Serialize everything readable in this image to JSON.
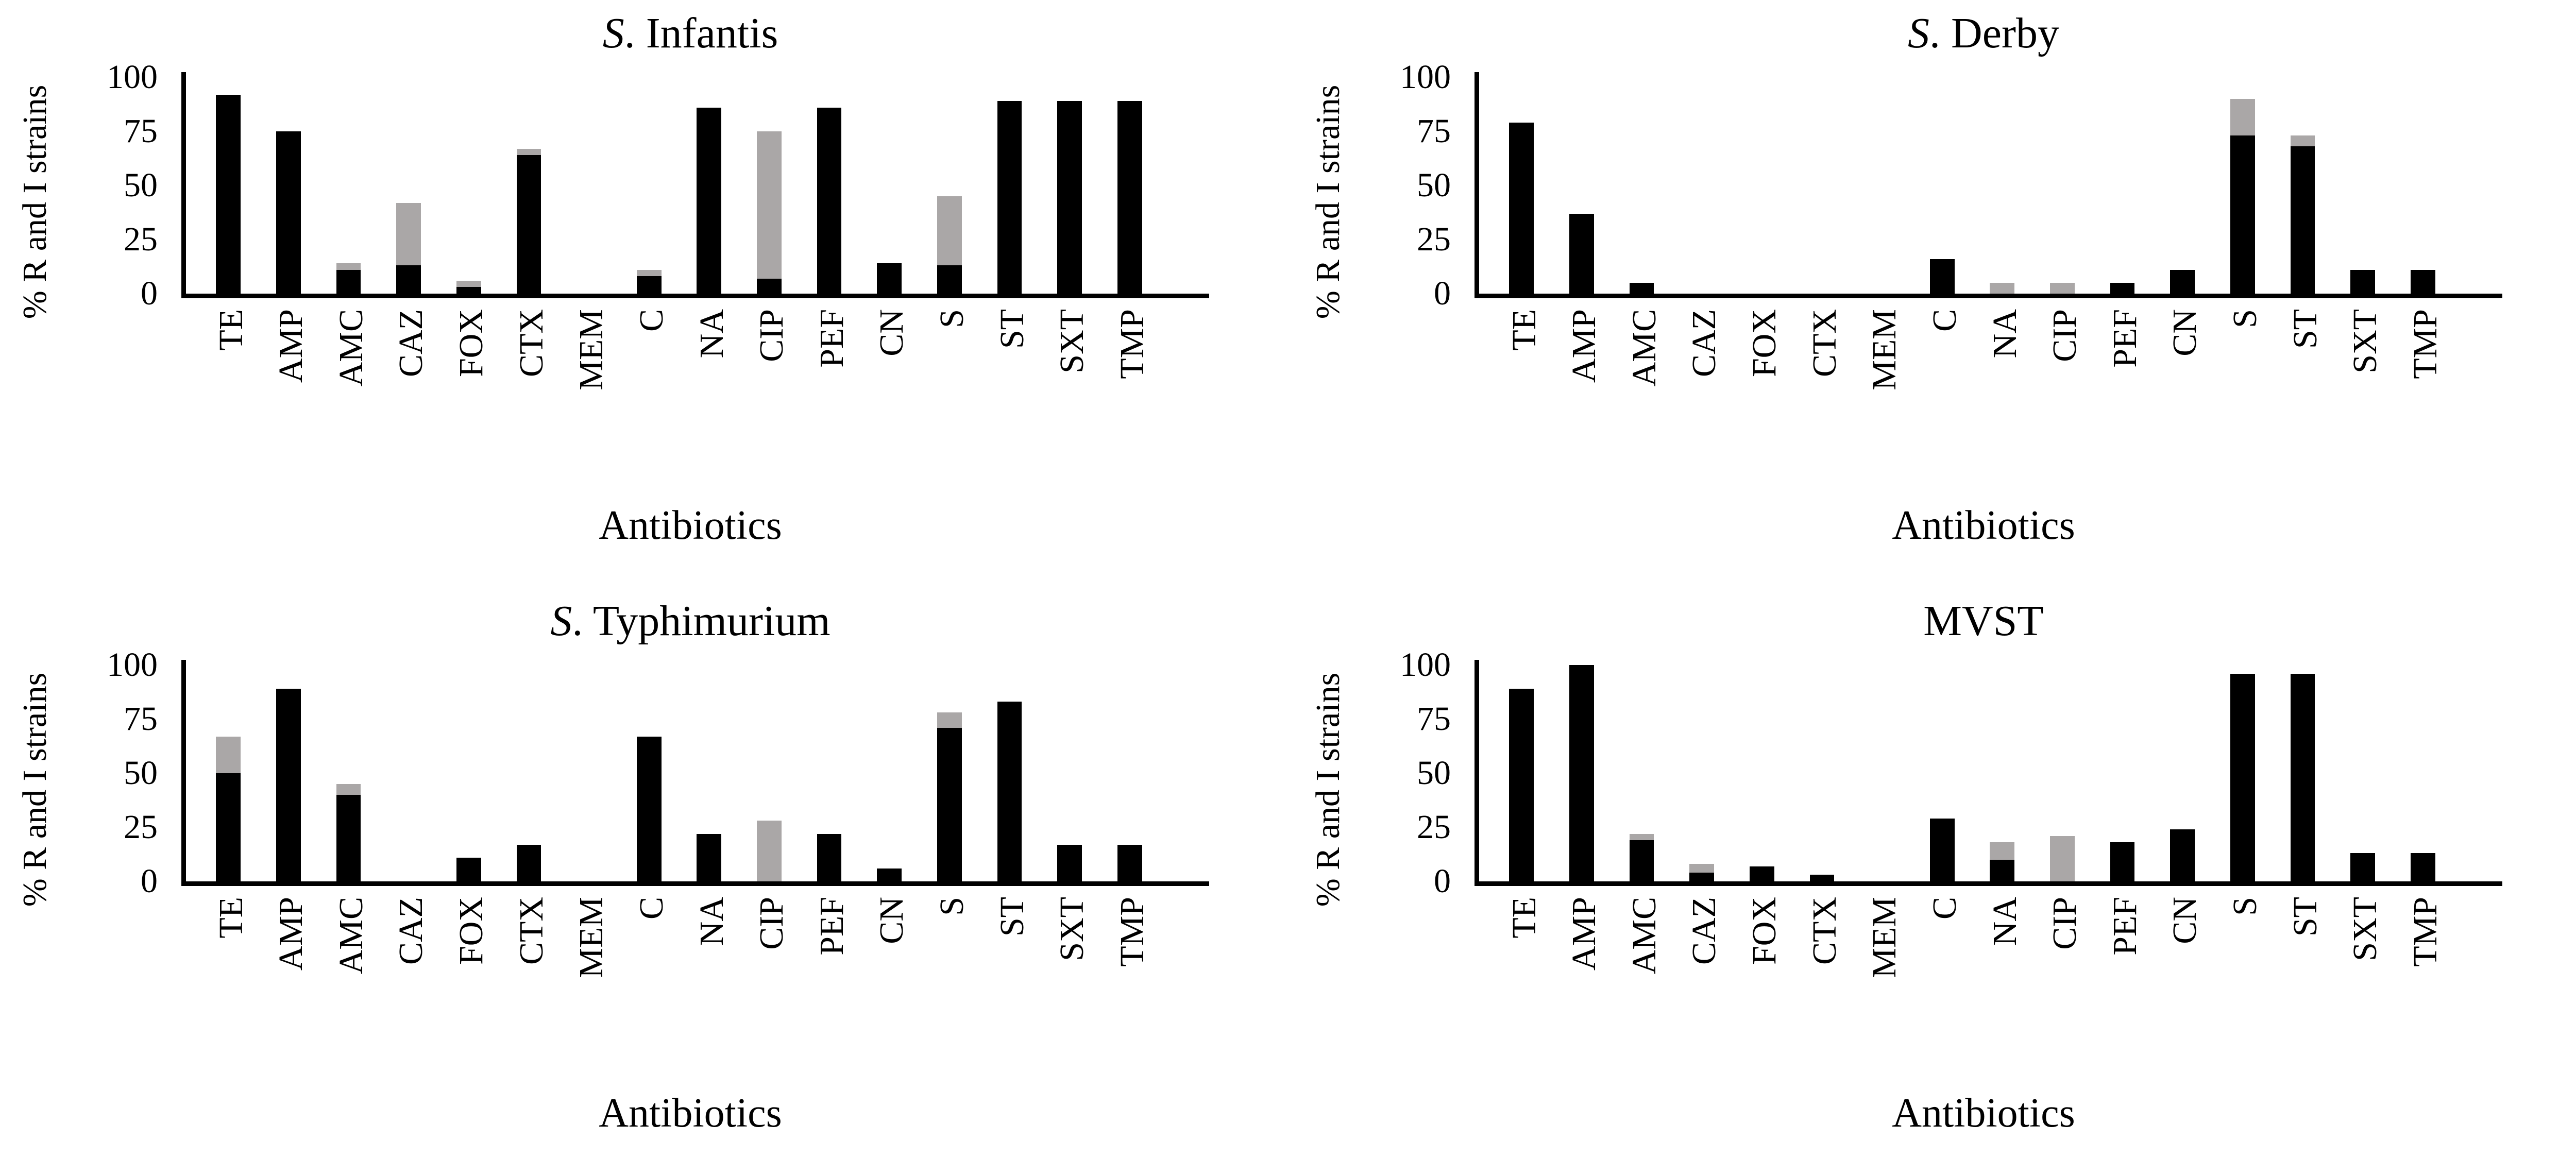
{
  "figure": {
    "background": "#ffffff",
    "bar_black": "#000000",
    "bar_gray": "#aaa7a7",
    "axis_color": "#000000"
  },
  "chart_data": [
    {
      "id": "s-infantis",
      "type": "bar",
      "stacked": true,
      "title": "S. Infantis",
      "title_prefix_italic": "S",
      "title_suffix": ". Infantis",
      "ylabel": "% R and I strains",
      "xlabel": "Antibiotics",
      "ylim": [
        0,
        100
      ],
      "yticks": [
        0,
        25,
        50,
        75,
        100
      ],
      "grid": false,
      "legend": "none",
      "categories": [
        "TE",
        "AMP",
        "AMC",
        "CAZ",
        "FOX",
        "CTX",
        "MEM",
        "C",
        "NA",
        "CIP",
        "PEF",
        "CN",
        "S",
        "ST",
        "SXT",
        "TMP"
      ],
      "series": [
        {
          "name": "R",
          "color": "#000000",
          "values": [
            92,
            75,
            11,
            13,
            3,
            64,
            0,
            8,
            86,
            7,
            86,
            14,
            13,
            89,
            89,
            89
          ]
        },
        {
          "name": "I",
          "color": "#aaa7a7",
          "values": [
            0,
            0,
            3,
            29,
            3,
            3,
            0,
            3,
            0,
            68,
            0,
            0,
            32,
            0,
            0,
            0
          ]
        }
      ]
    },
    {
      "id": "s-derby",
      "type": "bar",
      "stacked": true,
      "title": "S. Derby",
      "title_prefix_italic": "S",
      "title_suffix": ". Derby",
      "ylabel": "% R and I strains",
      "xlabel": "Antibiotics",
      "ylim": [
        0,
        100
      ],
      "yticks": [
        0,
        25,
        50,
        75,
        100
      ],
      "grid": false,
      "legend": "none",
      "categories": [
        "TE",
        "AMP",
        "AMC",
        "CAZ",
        "FOX",
        "CTX",
        "MEM",
        "C",
        "NA",
        "CIP",
        "PEF",
        "CN",
        "S",
        "ST",
        "SXT",
        "TMP"
      ],
      "series": [
        {
          "name": "R",
          "color": "#000000",
          "values": [
            79,
            37,
            5,
            0,
            0,
            0,
            0,
            16,
            0,
            0,
            5,
            11,
            73,
            68,
            11,
            11
          ]
        },
        {
          "name": "I",
          "color": "#aaa7a7",
          "values": [
            0,
            0,
            0,
            0,
            0,
            0,
            0,
            0,
            5,
            5,
            0,
            0,
            17,
            5,
            0,
            0
          ]
        }
      ]
    },
    {
      "id": "s-typhimurium",
      "type": "bar",
      "stacked": true,
      "title": "S. Typhimurium",
      "title_prefix_italic": "S",
      "title_suffix": ". Typhimurium",
      "ylabel": "% R and I strains",
      "xlabel": "Antibiotics",
      "ylim": [
        0,
        100
      ],
      "yticks": [
        0,
        25,
        50,
        75,
        100
      ],
      "grid": false,
      "legend": "none",
      "categories": [
        "TE",
        "AMP",
        "AMC",
        "CAZ",
        "FOX",
        "CTX",
        "MEM",
        "C",
        "NA",
        "CIP",
        "PEF",
        "CN",
        "S",
        "ST",
        "SXT",
        "TMP"
      ],
      "series": [
        {
          "name": "R",
          "color": "#000000",
          "values": [
            50,
            89,
            40,
            0,
            11,
            17,
            0,
            67,
            22,
            0,
            22,
            6,
            71,
            83,
            17,
            17
          ]
        },
        {
          "name": "I",
          "color": "#aaa7a7",
          "values": [
            17,
            0,
            5,
            0,
            0,
            0,
            0,
            0,
            0,
            28,
            0,
            0,
            7,
            0,
            0,
            0
          ]
        }
      ]
    },
    {
      "id": "mvst",
      "type": "bar",
      "stacked": true,
      "title": "MVST",
      "title_prefix_italic": "",
      "title_suffix": "MVST",
      "ylabel": "% R and I strains",
      "xlabel": "Antibiotics",
      "ylim": [
        0,
        100
      ],
      "yticks": [
        0,
        25,
        50,
        75,
        100
      ],
      "grid": false,
      "legend": "none",
      "categories": [
        "TE",
        "AMP",
        "AMC",
        "CAZ",
        "FOX",
        "CTX",
        "MEM",
        "C",
        "NA",
        "CIP",
        "PEF",
        "CN",
        "S",
        "ST",
        "SXT",
        "TMP"
      ],
      "series": [
        {
          "name": "R",
          "color": "#000000",
          "values": [
            89,
            100,
            19,
            4,
            7,
            3,
            0,
            29,
            10,
            0,
            18,
            24,
            96,
            96,
            13,
            13
          ]
        },
        {
          "name": "I",
          "color": "#aaa7a7",
          "values": [
            0,
            0,
            3,
            4,
            0,
            0,
            0,
            0,
            8,
            21,
            0,
            0,
            0,
            0,
            0,
            0
          ]
        }
      ]
    }
  ]
}
